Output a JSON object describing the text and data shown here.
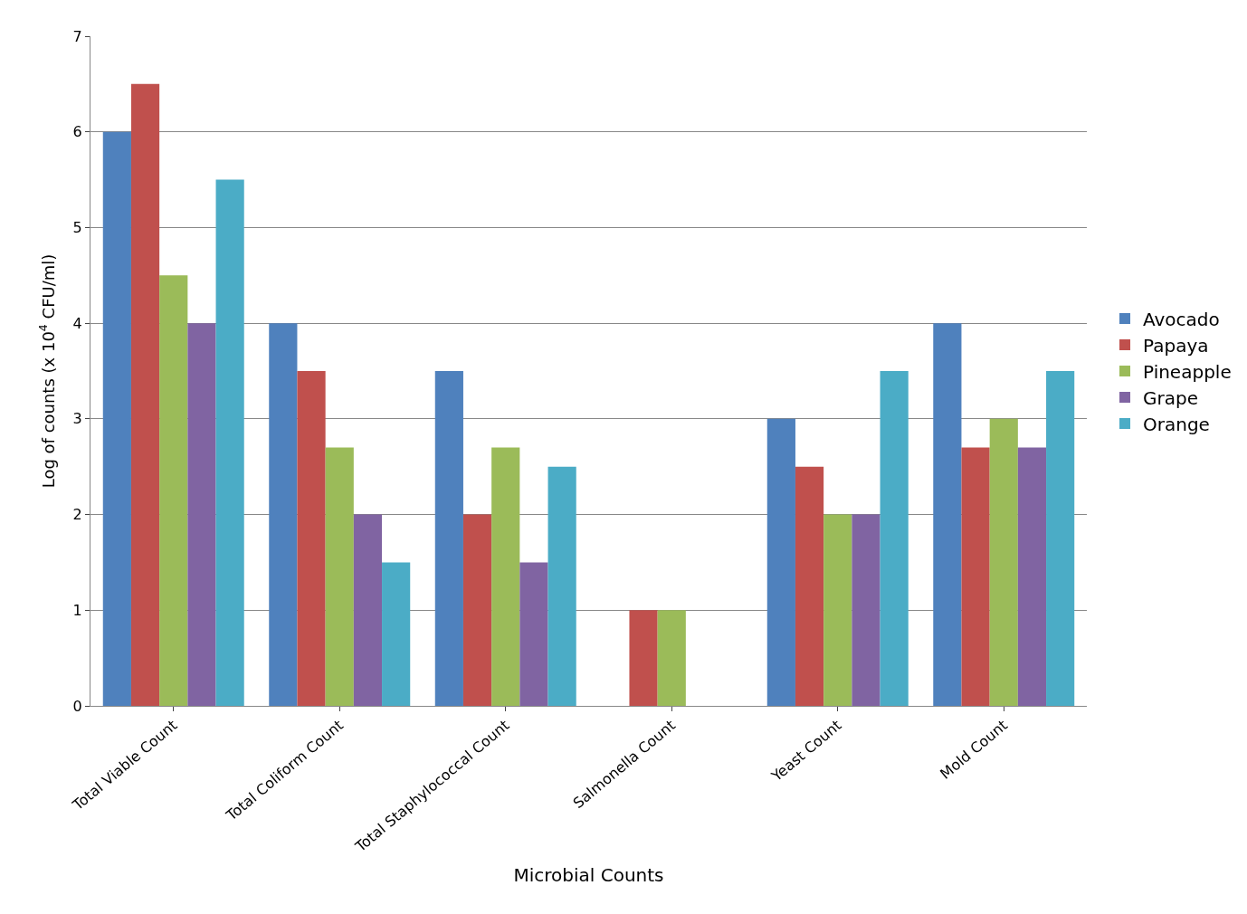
{
  "chart_data": {
    "type": "bar",
    "categories": [
      "Total Viable Count",
      "Total Coliform Count",
      "Total Staphylococcal Count",
      "Salmonella Count",
      "Yeast Count",
      "Mold Count"
    ],
    "series": [
      {
        "name": "Avocado",
        "color": "#4f81bd",
        "values": [
          6,
          4,
          3.5,
          0,
          3,
          4
        ]
      },
      {
        "name": "Papaya",
        "color": "#c0504d",
        "values": [
          6.5,
          3.5,
          2,
          1,
          2.5,
          2.7
        ]
      },
      {
        "name": "Pineapple",
        "color": "#9bbb59",
        "values": [
          4.5,
          2.7,
          2.7,
          1,
          2,
          3
        ]
      },
      {
        "name": "Grape",
        "color": "#8064a2",
        "values": [
          4,
          2,
          1.5,
          0,
          2,
          2.7
        ]
      },
      {
        "name": "Orange",
        "color": "#4bacc6",
        "values": [
          5.5,
          1.5,
          2.5,
          0,
          3.5,
          3.5
        ]
      }
    ],
    "xlabel": "Microbial Counts",
    "ylabel": "Log of counts (x 10$^{4}$ CFU/ml)",
    "ylim": [
      0,
      7
    ],
    "yticks": [
      0,
      1,
      2,
      3,
      4,
      5,
      6,
      7
    ],
    "grid": "y",
    "legend": "right"
  }
}
